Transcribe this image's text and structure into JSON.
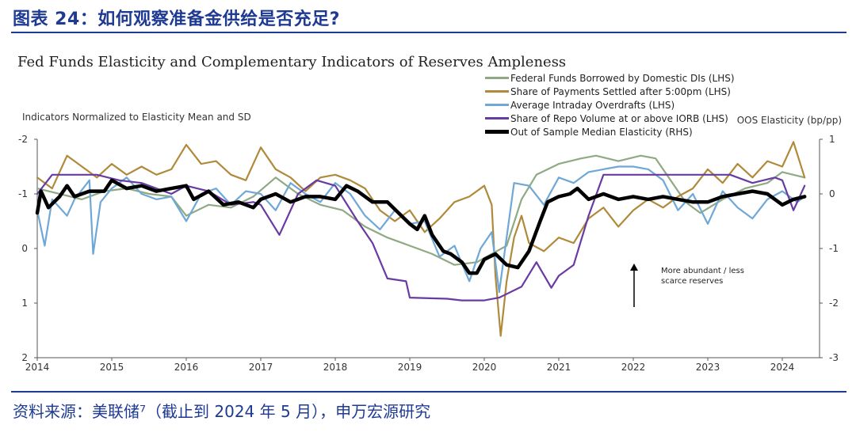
{
  "header": {
    "figure_title": "图表 24：如何观察准备金供给是否充足?",
    "source_text": "资料来源：美联储⁷（截止到 2024 年 5 月），申万宏源研究"
  },
  "colors": {
    "fed_funds": "#8faa82",
    "payments": "#b08a3a",
    "overdrafts": "#6fa8d6",
    "repo": "#6a3aa3",
    "elasticity": "#000000",
    "brand": "#1f3a93"
  },
  "chart_data": {
    "type": "line",
    "title": "Fed Funds Elasticity and Complementary Indicators of Reserves Ampleness",
    "ylabel_left": "Indicators Normalized to Elasticity Mean and SD",
    "ylabel_right": "OOS Elasticity (bp/pp)",
    "x_ticks": [
      "2014",
      "2015",
      "2016",
      "2017",
      "2018",
      "2019",
      "2020",
      "2021",
      "2022",
      "2023",
      "2024"
    ],
    "y_left_ticks": [
      "-2",
      "-1",
      "0",
      "1",
      "2"
    ],
    "y_right_ticks": [
      "1",
      "0",
      "-1",
      "-2",
      "-3"
    ],
    "ylim_left": [
      -2,
      2
    ],
    "ylim_right": [
      -3,
      1
    ],
    "xlim": [
      2014.0,
      2024.5
    ],
    "annotation": {
      "line1": "More abundant / less",
      "line2": "scarce reserves"
    },
    "series": [
      {
        "name": "Federal Funds Borrowed by Domestic DIs (LHS)",
        "axis": "left",
        "color_key": "fed_funds",
        "points": [
          [
            2014.0,
            -1.1
          ],
          [
            2014.3,
            -1.0
          ],
          [
            2014.6,
            -0.9
          ],
          [
            2014.9,
            -1.05
          ],
          [
            2015.2,
            -1.1
          ],
          [
            2015.5,
            -1.0
          ],
          [
            2015.8,
            -0.95
          ],
          [
            2016.0,
            -0.6
          ],
          [
            2016.3,
            -0.8
          ],
          [
            2016.6,
            -0.75
          ],
          [
            2016.9,
            -0.95
          ],
          [
            2017.2,
            -1.3
          ],
          [
            2017.5,
            -1.0
          ],
          [
            2017.8,
            -0.8
          ],
          [
            2018.1,
            -0.7
          ],
          [
            2018.4,
            -0.4
          ],
          [
            2018.7,
            -0.2
          ],
          [
            2019.0,
            -0.05
          ],
          [
            2019.3,
            0.1
          ],
          [
            2019.6,
            0.3
          ],
          [
            2019.9,
            0.25
          ],
          [
            2020.1,
            0.1
          ],
          [
            2020.3,
            -0.05
          ],
          [
            2020.5,
            -0.9
          ],
          [
            2020.7,
            -1.35
          ],
          [
            2021.0,
            -1.55
          ],
          [
            2021.3,
            -1.65
          ],
          [
            2021.5,
            -1.7
          ],
          [
            2021.8,
            -1.6
          ],
          [
            2022.1,
            -1.7
          ],
          [
            2022.3,
            -1.65
          ],
          [
            2022.45,
            -1.35
          ],
          [
            2022.7,
            -0.85
          ],
          [
            2022.9,
            -0.65
          ],
          [
            2023.2,
            -0.9
          ],
          [
            2023.5,
            -1.1
          ],
          [
            2023.8,
            -1.2
          ],
          [
            2024.0,
            -1.4
          ],
          [
            2024.3,
            -1.3
          ]
        ]
      },
      {
        "name": "Share of Payments Settled after 5:00pm (LHS)",
        "axis": "left",
        "color_key": "payments",
        "points": [
          [
            2014.0,
            -1.3
          ],
          [
            2014.2,
            -1.1
          ],
          [
            2014.4,
            -1.7
          ],
          [
            2014.6,
            -1.5
          ],
          [
            2014.8,
            -1.3
          ],
          [
            2015.0,
            -1.55
          ],
          [
            2015.2,
            -1.35
          ],
          [
            2015.4,
            -1.5
          ],
          [
            2015.6,
            -1.35
          ],
          [
            2015.8,
            -1.45
          ],
          [
            2016.0,
            -1.9
          ],
          [
            2016.2,
            -1.55
          ],
          [
            2016.4,
            -1.6
          ],
          [
            2016.6,
            -1.35
          ],
          [
            2016.8,
            -1.25
          ],
          [
            2017.0,
            -1.85
          ],
          [
            2017.2,
            -1.45
          ],
          [
            2017.4,
            -1.3
          ],
          [
            2017.6,
            -1.05
          ],
          [
            2017.8,
            -1.3
          ],
          [
            2018.0,
            -1.35
          ],
          [
            2018.2,
            -1.25
          ],
          [
            2018.4,
            -1.1
          ],
          [
            2018.6,
            -0.7
          ],
          [
            2018.8,
            -0.5
          ],
          [
            2019.0,
            -0.7
          ],
          [
            2019.2,
            -0.3
          ],
          [
            2019.4,
            -0.55
          ],
          [
            2019.6,
            -0.85
          ],
          [
            2019.8,
            -0.95
          ],
          [
            2020.0,
            -1.15
          ],
          [
            2020.1,
            -0.8
          ],
          [
            2020.15,
            0.5
          ],
          [
            2020.22,
            1.6
          ],
          [
            2020.3,
            0.6
          ],
          [
            2020.4,
            -0.2
          ],
          [
            2020.5,
            -0.6
          ],
          [
            2020.6,
            -0.1
          ],
          [
            2020.8,
            0.05
          ],
          [
            2021.0,
            -0.2
          ],
          [
            2021.2,
            -0.1
          ],
          [
            2021.4,
            -0.55
          ],
          [
            2021.6,
            -0.75
          ],
          [
            2021.8,
            -0.4
          ],
          [
            2022.0,
            -0.7
          ],
          [
            2022.2,
            -0.9
          ],
          [
            2022.4,
            -0.75
          ],
          [
            2022.6,
            -0.95
          ],
          [
            2022.8,
            -1.1
          ],
          [
            2023.0,
            -1.45
          ],
          [
            2023.2,
            -1.2
          ],
          [
            2023.4,
            -1.55
          ],
          [
            2023.6,
            -1.3
          ],
          [
            2023.8,
            -1.6
          ],
          [
            2024.0,
            -1.5
          ],
          [
            2024.15,
            -1.95
          ],
          [
            2024.3,
            -1.3
          ]
        ]
      },
      {
        "name": "Average Intraday Overdrafts (LHS)",
        "axis": "left",
        "color_key": "overdrafts",
        "points": [
          [
            2014.0,
            -0.7
          ],
          [
            2014.1,
            -0.05
          ],
          [
            2014.2,
            -0.9
          ],
          [
            2014.4,
            -0.6
          ],
          [
            2014.5,
            -0.9
          ],
          [
            2014.7,
            -1.25
          ],
          [
            2014.75,
            0.1
          ],
          [
            2014.85,
            -0.85
          ],
          [
            2015.0,
            -1.1
          ],
          [
            2015.2,
            -1.3
          ],
          [
            2015.4,
            -1.0
          ],
          [
            2015.6,
            -0.9
          ],
          [
            2015.8,
            -0.95
          ],
          [
            2016.0,
            -0.5
          ],
          [
            2016.2,
            -1.0
          ],
          [
            2016.4,
            -1.1
          ],
          [
            2016.6,
            -0.8
          ],
          [
            2016.8,
            -1.05
          ],
          [
            2017.0,
            -1.0
          ],
          [
            2017.2,
            -0.7
          ],
          [
            2017.4,
            -1.2
          ],
          [
            2017.6,
            -1.0
          ],
          [
            2017.8,
            -0.85
          ],
          [
            2018.0,
            -1.2
          ],
          [
            2018.2,
            -1.0
          ],
          [
            2018.4,
            -0.6
          ],
          [
            2018.6,
            -0.35
          ],
          [
            2018.8,
            -0.7
          ],
          [
            2019.0,
            -0.45
          ],
          [
            2019.2,
            -0.5
          ],
          [
            2019.4,
            0.15
          ],
          [
            2019.6,
            -0.05
          ],
          [
            2019.8,
            0.6
          ],
          [
            2019.95,
            0.0
          ],
          [
            2020.1,
            -0.3
          ],
          [
            2020.2,
            0.8
          ],
          [
            2020.3,
            -0.2
          ],
          [
            2020.4,
            -1.2
          ],
          [
            2020.6,
            -1.15
          ],
          [
            2020.8,
            -0.8
          ],
          [
            2021.0,
            -1.3
          ],
          [
            2021.2,
            -1.2
          ],
          [
            2021.4,
            -1.4
          ],
          [
            2021.6,
            -1.45
          ],
          [
            2021.8,
            -1.5
          ],
          [
            2022.0,
            -1.5
          ],
          [
            2022.2,
            -1.45
          ],
          [
            2022.4,
            -1.25
          ],
          [
            2022.6,
            -0.7
          ],
          [
            2022.8,
            -1.0
          ],
          [
            2023.0,
            -0.45
          ],
          [
            2023.2,
            -1.05
          ],
          [
            2023.4,
            -0.75
          ],
          [
            2023.6,
            -0.55
          ],
          [
            2023.8,
            -0.9
          ],
          [
            2024.0,
            -1.05
          ],
          [
            2024.2,
            -0.85
          ],
          [
            2024.3,
            -0.95
          ]
        ]
      },
      {
        "name": "Share of Repo Volume at or above IORB (LHS)",
        "axis": "left",
        "color_key": "repo",
        "points": [
          [
            2014.0,
            -1.0
          ],
          [
            2014.2,
            -1.35
          ],
          [
            2014.5,
            -1.35
          ],
          [
            2014.8,
            -1.35
          ],
          [
            2015.1,
            -1.25
          ],
          [
            2015.4,
            -1.2
          ],
          [
            2015.8,
            -1.0
          ],
          [
            2016.0,
            -1.15
          ],
          [
            2016.3,
            -1.05
          ],
          [
            2016.6,
            -0.8
          ],
          [
            2016.9,
            -0.85
          ],
          [
            2017.0,
            -0.8
          ],
          [
            2017.25,
            -0.25
          ],
          [
            2017.5,
            -1.0
          ],
          [
            2017.75,
            -1.25
          ],
          [
            2018.0,
            -1.15
          ],
          [
            2018.3,
            -0.5
          ],
          [
            2018.5,
            -0.1
          ],
          [
            2018.7,
            0.55
          ],
          [
            2018.95,
            0.6
          ],
          [
            2019.0,
            0.9
          ],
          [
            2019.5,
            0.92
          ],
          [
            2019.7,
            0.95
          ],
          [
            2020.0,
            0.95
          ],
          [
            2020.2,
            0.9
          ],
          [
            2020.5,
            0.7
          ],
          [
            2020.7,
            0.25
          ],
          [
            2020.9,
            0.72
          ],
          [
            2021.0,
            0.5
          ],
          [
            2021.2,
            0.3
          ],
          [
            2021.4,
            -0.6
          ],
          [
            2021.6,
            -1.35
          ],
          [
            2021.9,
            -1.35
          ],
          [
            2022.2,
            -1.35
          ],
          [
            2022.5,
            -1.35
          ],
          [
            2022.8,
            -1.35
          ],
          [
            2023.1,
            -1.35
          ],
          [
            2023.3,
            -1.35
          ],
          [
            2023.6,
            -1.2
          ],
          [
            2023.9,
            -1.3
          ],
          [
            2024.0,
            -1.25
          ],
          [
            2024.15,
            -0.7
          ],
          [
            2024.3,
            -1.15
          ]
        ]
      },
      {
        "name": "Out of Sample Median Elasticity (RHS)",
        "axis": "right",
        "color_key": "elasticity",
        "points": [
          [
            2014.0,
            -0.35
          ],
          [
            2014.05,
            0.05
          ],
          [
            2014.15,
            -0.25
          ],
          [
            2014.3,
            -0.05
          ],
          [
            2014.4,
            0.15
          ],
          [
            2014.5,
            -0.05
          ],
          [
            2014.7,
            0.05
          ],
          [
            2014.9,
            0.05
          ],
          [
            2015.0,
            0.25
          ],
          [
            2015.2,
            0.1
          ],
          [
            2015.4,
            0.15
          ],
          [
            2015.6,
            0.05
          ],
          [
            2015.8,
            0.1
          ],
          [
            2016.0,
            0.15
          ],
          [
            2016.1,
            -0.1
          ],
          [
            2016.3,
            0.05
          ],
          [
            2016.5,
            -0.2
          ],
          [
            2016.7,
            -0.15
          ],
          [
            2016.9,
            -0.25
          ],
          [
            2017.0,
            -0.1
          ],
          [
            2017.2,
            0.0
          ],
          [
            2017.4,
            -0.15
          ],
          [
            2017.6,
            -0.05
          ],
          [
            2017.8,
            -0.05
          ],
          [
            2018.0,
            -0.1
          ],
          [
            2018.15,
            0.15
          ],
          [
            2018.3,
            0.05
          ],
          [
            2018.5,
            -0.15
          ],
          [
            2018.7,
            -0.15
          ],
          [
            2018.85,
            -0.35
          ],
          [
            2019.0,
            -0.55
          ],
          [
            2019.1,
            -0.65
          ],
          [
            2019.2,
            -0.4
          ],
          [
            2019.3,
            -0.75
          ],
          [
            2019.45,
            -1.05
          ],
          [
            2019.55,
            -1.1
          ],
          [
            2019.7,
            -1.25
          ],
          [
            2019.8,
            -1.45
          ],
          [
            2019.9,
            -1.45
          ],
          [
            2020.0,
            -1.2
          ],
          [
            2020.15,
            -1.1
          ],
          [
            2020.3,
            -1.3
          ],
          [
            2020.45,
            -1.35
          ],
          [
            2020.6,
            -1.05
          ],
          [
            2020.75,
            -0.5
          ],
          [
            2020.85,
            -0.15
          ],
          [
            2021.0,
            -0.05
          ],
          [
            2021.15,
            0.0
          ],
          [
            2021.25,
            0.1
          ],
          [
            2021.4,
            -0.1
          ],
          [
            2021.6,
            0.0
          ],
          [
            2021.8,
            -0.1
          ],
          [
            2022.0,
            -0.05
          ],
          [
            2022.2,
            -0.1
          ],
          [
            2022.4,
            -0.05
          ],
          [
            2022.6,
            -0.1
          ],
          [
            2022.8,
            -0.15
          ],
          [
            2023.0,
            -0.15
          ],
          [
            2023.2,
            -0.05
          ],
          [
            2023.4,
            0.0
          ],
          [
            2023.6,
            0.05
          ],
          [
            2023.8,
            0.0
          ],
          [
            2024.0,
            -0.2
          ],
          [
            2024.15,
            -0.1
          ],
          [
            2024.3,
            -0.05
          ]
        ]
      }
    ]
  }
}
